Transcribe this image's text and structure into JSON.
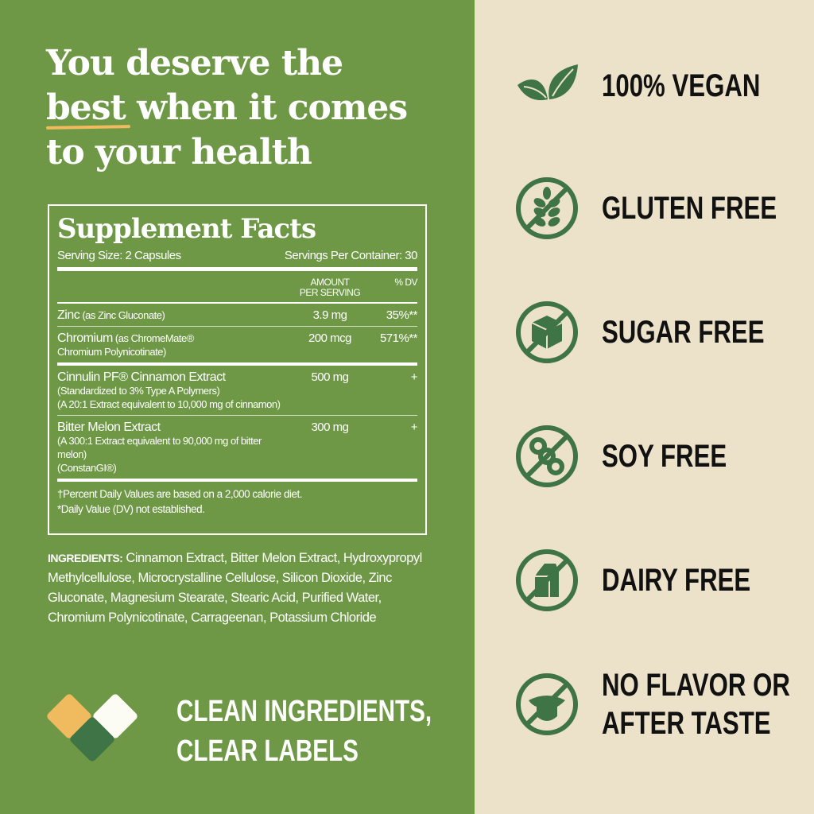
{
  "headline": {
    "line1": "You deserve the",
    "best": "best",
    "line2_rest": " when it comes",
    "line3": "to your health"
  },
  "facts": {
    "title": "Supplement Facts",
    "serving_size": "Serving Size: 2 Capsules",
    "servings_per_container": "Servings Per Container: 30",
    "col_amount_1": "AMOUNT",
    "col_amount_2": "PER SERVING",
    "col_dv": "% DV",
    "items": [
      {
        "name": "Zinc",
        "detail": " (as Zinc Gluconate)",
        "sub": "",
        "amount": "3.9 mg",
        "dv": "35%**"
      },
      {
        "name": "Chromium",
        "detail": " (as ChromeMate®",
        "sub": "Chromium Polynicotinate)",
        "amount": "200 mcg",
        "dv": "571%**"
      },
      {
        "name": "Cinnulin PF® Cinnamon Extract",
        "detail": "",
        "sub": "(Standardized to 3% Type A Polymers)\n(A 20:1 Extract equivalent to 10,000 mg of cinnamon)",
        "amount": "500 mg",
        "dv": "+"
      },
      {
        "name": "Bitter Melon Extract",
        "detail": "",
        "sub": "(A 300:1 Extract equivalent to 90,000 mg of bitter melon)\n(ConstanGI®)",
        "amount": "300 mg",
        "dv": "+"
      }
    ],
    "footnote1": "†Percent Daily Values are based on a 2,000 calorie diet.",
    "footnote2": "*Daily Value (DV) not established."
  },
  "ingredients": {
    "label": "INGREDIENTS:",
    "text": " Cinnamon Extract, Bitter Melon Extract, Hydroxypropyl Methylcellulose, Microcrystalline Cellulose, Silicon Dioxide, Zinc Gluconate, Magnesium Stearate, Stearic Acid, Purified Water, Chromium Polynicotinate, Carrageenan, Potassium Chloride"
  },
  "tagline": {
    "line1": "CLEAN INGREDIENTS,",
    "line2": "CLEAR LABELS"
  },
  "features": [
    {
      "label": "100% VEGAN",
      "icon": "leaf-icon"
    },
    {
      "label": "GLUTEN FREE",
      "icon": "no-wheat-icon"
    },
    {
      "label": "SUGAR FREE",
      "icon": "no-sugar-cube-icon"
    },
    {
      "label": "SOY FREE",
      "icon": "no-soy-icon"
    },
    {
      "label": "DAIRY FREE",
      "icon": "no-milk-carton-icon"
    },
    {
      "label": "NO FLAVOR OR",
      "label2": "AFTER TASTE",
      "icon": "no-tongue-icon"
    }
  ],
  "colors": {
    "panel_green": "#6e9846",
    "beige": "#ece2c9",
    "icon_green": "#3f7446",
    "accent_yellow": "#f0bb5e"
  }
}
